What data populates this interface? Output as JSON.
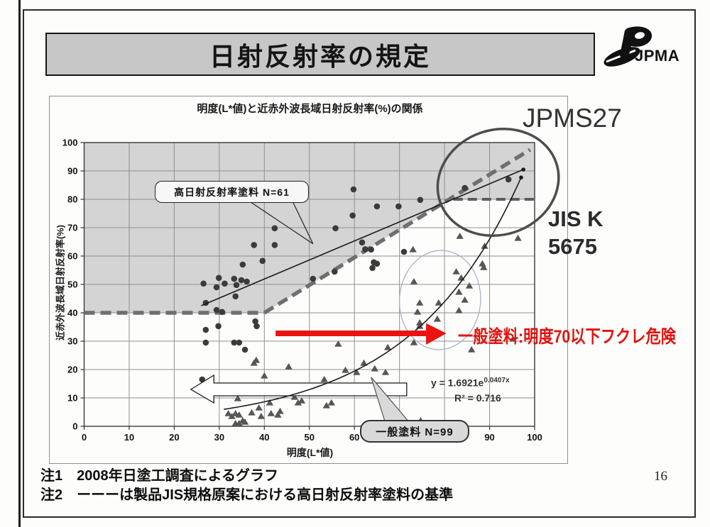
{
  "slide": {
    "title": "日射反射率の規定",
    "logo_text": "JPMA",
    "page_number": "16"
  },
  "annotations": {
    "jpms27": "JPMS27",
    "jis_line1": "JIS K",
    "jis_line2": "5675",
    "red_note": "一般塗料:明度70以下フクレ危険",
    "callout_high": "高日射反射率塗料 N=61",
    "callout_general": "一般塗料 N=99",
    "eq_base": "y = 1.6921e",
    "eq_exp": "0.0407x",
    "eq_r2": "R² = 0.716",
    "note1": "注1　2008年日塗工調査によるグラフ",
    "note2": "注2　ーーーは製品JIS規格原案における高日射反射率塗料の基準"
  },
  "chart_data": {
    "type": "scatter",
    "title": "明度(L*値)と近赤外波長域日射反射率(%)の関係",
    "xlabel": "明度(L*値)",
    "ylabel": "近赤外波長域日射反射率(%)",
    "xlim": [
      0,
      100
    ],
    "ylim": [
      0,
      100
    ],
    "xtick_step": 10,
    "ytick_step": 10,
    "grid": true,
    "shaded_region": [
      [
        0,
        100
      ],
      [
        0,
        40
      ],
      [
        40,
        40
      ],
      [
        81,
        80
      ],
      [
        100,
        80
      ],
      [
        100,
        100
      ]
    ],
    "shaded_color": "#d4d4d4",
    "boundary_dashes": [
      {
        "from": [
          0,
          40
        ],
        "to": [
          40,
          40
        ],
        "width": 5.5,
        "color": "#6f6f6f",
        "dash": "15 8"
      },
      {
        "from": [
          40,
          40
        ],
        "to": [
          99,
          97.5
        ],
        "width": 5.5,
        "color": "#6f6f6f",
        "dash": "15 8"
      },
      {
        "from": [
          82,
          80
        ],
        "to": [
          99.8,
          80
        ],
        "width": 4,
        "color": "#5c5c5c",
        "dash": "13 7"
      }
    ],
    "series": [
      {
        "name": "高日射反射率塗料",
        "n": 61,
        "marker": "circle",
        "color": "#3b3b3b",
        "points": [
          [
            59.8,
            83.5
          ],
          [
            94.2,
            87
          ],
          [
            84.5,
            84
          ],
          [
            74.6,
            79.8
          ],
          [
            65,
            77.5
          ],
          [
            69.8,
            77.5
          ],
          [
            59.6,
            74.3
          ],
          [
            55.8,
            69.8
          ],
          [
            42.3,
            69.8
          ],
          [
            61.7,
            64.8
          ],
          [
            62.4,
            62.4
          ],
          [
            63.7,
            62.3
          ],
          [
            71,
            61.5
          ],
          [
            64.3,
            57.8
          ],
          [
            65,
            57.3
          ],
          [
            64,
            55.8
          ],
          [
            37.7,
            63.9
          ],
          [
            42.3,
            63.9
          ],
          [
            39.6,
            58.3
          ],
          [
            35.2,
            57
          ],
          [
            50.8,
            52
          ],
          [
            55.6,
            54.5
          ],
          [
            29.9,
            52.3
          ],
          [
            26.5,
            50.3
          ],
          [
            29.4,
            49
          ],
          [
            31.2,
            50.3
          ],
          [
            33.3,
            52
          ],
          [
            34.9,
            51.5
          ],
          [
            36.1,
            51
          ],
          [
            33.8,
            49.8
          ],
          [
            27,
            43.5
          ],
          [
            33.6,
            45.8
          ],
          [
            29.4,
            41
          ],
          [
            30.6,
            40.3
          ],
          [
            38,
            37
          ],
          [
            38.3,
            35.3
          ],
          [
            27,
            34
          ],
          [
            29.8,
            35.3
          ],
          [
            27,
            29.5
          ],
          [
            33.3,
            29.5
          ],
          [
            34.4,
            29.5
          ],
          [
            35.7,
            27
          ],
          [
            26.2,
            16.5
          ]
        ]
      },
      {
        "name": "一般塗料",
        "n": 99,
        "marker": "triangle",
        "color": "#565656",
        "points": [
          [
            83.4,
            67
          ],
          [
            96.3,
            66.3
          ],
          [
            73,
            62.3
          ],
          [
            88.9,
            63.5
          ],
          [
            88.4,
            57.3
          ],
          [
            88.7,
            56
          ],
          [
            82.6,
            54.5
          ],
          [
            83.7,
            52.3
          ],
          [
            73.2,
            51
          ],
          [
            85.5,
            49.5
          ],
          [
            83.2,
            47.3
          ],
          [
            84.5,
            44.5
          ],
          [
            74.5,
            43.5
          ],
          [
            78.7,
            43.5
          ],
          [
            74,
            40.3
          ],
          [
            83.2,
            40.8
          ],
          [
            78.4,
            37.8
          ],
          [
            74.5,
            36.5
          ],
          [
            74.5,
            35.3
          ],
          [
            67.4,
            27.8
          ],
          [
            73.2,
            29.5
          ],
          [
            86,
            27
          ],
          [
            95.2,
            30.8
          ],
          [
            56.4,
            29
          ],
          [
            58,
            19.8
          ],
          [
            60.5,
            19
          ],
          [
            62.1,
            22.3
          ],
          [
            64.5,
            20.3
          ],
          [
            66.9,
            19
          ],
          [
            53.3,
            16.5
          ],
          [
            45.4,
            21
          ],
          [
            40,
            17.8
          ],
          [
            37.7,
            22.3
          ],
          [
            38.2,
            23.3
          ],
          [
            34.1,
            9.8
          ],
          [
            46.7,
            10.3
          ],
          [
            47.5,
            8.3
          ],
          [
            48.3,
            9
          ],
          [
            53.8,
            7.3
          ],
          [
            54.9,
            8.3
          ],
          [
            41.2,
            8.3
          ],
          [
            38.8,
            6.5
          ],
          [
            37.2,
            4.8
          ],
          [
            32,
            4.5
          ],
          [
            32.8,
            3.5
          ],
          [
            33.6,
            4.5
          ],
          [
            34.4,
            4
          ],
          [
            35.2,
            2
          ],
          [
            33.6,
            1
          ],
          [
            34.4,
            1
          ],
          [
            35.7,
            1.5
          ],
          [
            39.3,
            3.5
          ],
          [
            41.5,
            4.5
          ],
          [
            43,
            4
          ],
          [
            43.5,
            5.3
          ],
          [
            74.7,
            2
          ]
        ]
      }
    ],
    "trend_line": {
      "from": [
        26,
        42.5
      ],
      "to": [
        97.5,
        90.5
      ],
      "color": "#1a1a1a"
    },
    "exp_curve": {
      "a": 1.6921,
      "b": 0.0407,
      "x_from": 31,
      "x_to": 97,
      "color": "#1a1a1a"
    },
    "ellipses": [
      {
        "cx": 91.9,
        "cy": 86,
        "rx": 13.6,
        "ry": 18.5,
        "rotate": -18,
        "stroke": "#4d4d4d",
        "width": 3.5
      },
      {
        "cx": 79,
        "cy": 44.5,
        "rx": 9,
        "ry": 17.5,
        "rotate": 4,
        "stroke": "#aab1c6",
        "width": 1.3
      }
    ],
    "arrows": {
      "white_polygon": [
        [
          23.7,
          13
        ],
        [
          28.8,
          18
        ],
        [
          28.8,
          15.25
        ],
        [
          71.6,
          15.25
        ],
        [
          71.6,
          10.75
        ],
        [
          28.8,
          10.75
        ],
        [
          28.8,
          8.25
        ]
      ],
      "red_body": {
        "x_from": 42.5,
        "x_to": 75.9,
        "y_bottom": 31.75,
        "y_top": 33.75
      },
      "red_head": [
        [
          75.9,
          36.3
        ],
        [
          80.4,
          32.75
        ],
        [
          75.9,
          28.75
        ]
      ],
      "red_color": "#ea1310"
    },
    "callout_tails": {
      "high": [
        [
          36.5,
          79.5
        ],
        [
          50.8,
          64.3
        ],
        [
          46.2,
          79.5
        ]
      ],
      "general": [
        [
          63.7,
          17.3
        ],
        [
          66.9,
          1
        ],
        [
          72.4,
          1
        ]
      ]
    }
  }
}
